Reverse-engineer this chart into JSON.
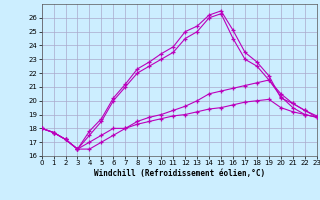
{
  "xlabel": "Windchill (Refroidissement éolien,°C)",
  "xlim": [
    0,
    23
  ],
  "ylim": [
    16,
    27
  ],
  "yticks": [
    16,
    17,
    18,
    19,
    20,
    21,
    22,
    23,
    24,
    25,
    26
  ],
  "xticks": [
    0,
    1,
    2,
    3,
    4,
    5,
    6,
    7,
    8,
    9,
    10,
    11,
    12,
    13,
    14,
    15,
    16,
    17,
    18,
    19,
    20,
    21,
    22,
    23
  ],
  "background_color": "#cceeff",
  "grid_color": "#aaaacc",
  "line_color": "#bb00bb",
  "line1_x": [
    0,
    1,
    2,
    3,
    4,
    5,
    6,
    7,
    8,
    9,
    10,
    11,
    12,
    13,
    14,
    15,
    16,
    17,
    18,
    19,
    20,
    21,
    22,
    23
  ],
  "line1_y": [
    18.0,
    17.7,
    17.2,
    16.5,
    16.5,
    17.0,
    17.5,
    18.0,
    18.3,
    18.5,
    18.7,
    18.9,
    19.0,
    19.2,
    19.4,
    19.5,
    19.7,
    19.9,
    20.0,
    20.1,
    19.5,
    19.2,
    19.0,
    18.8
  ],
  "line2_x": [
    0,
    1,
    2,
    3,
    4,
    5,
    6,
    7,
    8,
    9,
    10,
    11,
    12,
    13,
    14,
    15,
    16,
    17,
    18,
    19,
    20,
    21,
    22,
    23
  ],
  "line2_y": [
    18.0,
    17.7,
    17.2,
    16.5,
    17.0,
    17.5,
    18.0,
    18.0,
    18.5,
    18.8,
    19.0,
    19.3,
    19.6,
    20.0,
    20.5,
    20.7,
    20.9,
    21.1,
    21.3,
    21.5,
    20.5,
    19.8,
    19.3,
    18.9
  ],
  "line3_x": [
    0,
    1,
    2,
    3,
    4,
    5,
    6,
    7,
    8,
    9,
    10,
    11,
    12,
    13,
    14,
    15,
    16,
    17,
    18,
    19,
    20,
    21,
    22,
    23
  ],
  "line3_y": [
    18.0,
    17.7,
    17.2,
    16.5,
    17.5,
    18.5,
    20.0,
    21.0,
    22.0,
    22.5,
    23.0,
    23.5,
    24.5,
    25.0,
    26.0,
    26.3,
    24.5,
    23.0,
    22.5,
    21.5,
    20.3,
    19.5,
    19.0,
    18.8
  ],
  "line4_x": [
    0,
    1,
    2,
    3,
    4,
    5,
    6,
    7,
    8,
    9,
    10,
    11,
    12,
    13,
    14,
    15,
    16,
    17,
    18,
    19,
    20,
    21,
    22,
    23
  ],
  "line4_y": [
    18.0,
    17.7,
    17.2,
    16.5,
    17.8,
    18.7,
    20.2,
    21.2,
    22.3,
    22.8,
    23.4,
    23.9,
    25.0,
    25.4,
    26.2,
    26.5,
    25.1,
    23.5,
    22.8,
    21.8,
    20.2,
    19.8,
    19.3,
    18.8
  ]
}
